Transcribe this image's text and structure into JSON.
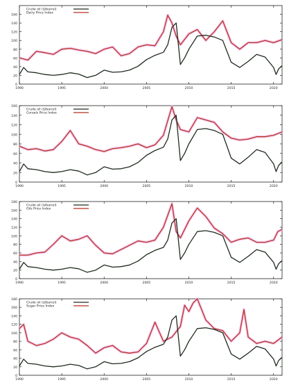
{
  "chart_data": [
    {
      "type": "line",
      "title": "",
      "xlabel": "",
      "ylabel": "",
      "xlim": [
        1990,
        2021
      ],
      "ylim": [
        0,
        180
      ],
      "x_ticks": [
        "1990",
        "1995",
        "2000",
        "2005",
        "2010",
        "2015",
        "2020"
      ],
      "y_ticks": [
        "0",
        "20",
        "40",
        "60",
        "80",
        "100",
        "120",
        "140",
        "160"
      ],
      "legend_position": "top-left",
      "series": [
        {
          "name": "Crude oil ($/barrel)",
          "color": "#1e2a1e",
          "x": [
            1990,
            1990.5,
            1991,
            1992,
            1993,
            1994,
            1995,
            1996,
            1997,
            1998,
            1999,
            2000,
            2001,
            2002,
            2003,
            2004,
            2005,
            2006,
            2007,
            2007.5,
            2008,
            2008.5,
            2009,
            2009.5,
            2010,
            2011,
            2012,
            2013,
            2014,
            2014.5,
            2015,
            2016,
            2017,
            2018,
            2019,
            2020,
            2020.3,
            2020.6,
            2021
          ],
          "values": [
            22,
            38,
            28,
            26,
            22,
            20,
            22,
            26,
            23,
            15,
            20,
            32,
            27,
            28,
            32,
            41,
            56,
            66,
            73,
            90,
            130,
            140,
            45,
            60,
            80,
            110,
            112,
            108,
            100,
            75,
            50,
            38,
            52,
            68,
            62,
            38,
            22,
            35,
            42
          ]
        },
        {
          "name": "Dairy Price Index",
          "color": "#b5321e",
          "x": [
            1990,
            1991,
            1992,
            1993,
            1994,
            1995,
            1996,
            1997,
            1998,
            1999,
            2000,
            2001,
            2002,
            2003,
            2004,
            2005,
            2006,
            2007,
            2007.5,
            2008,
            2008.5,
            2009,
            2010,
            2011,
            2012,
            2013,
            2014,
            2015,
            2016,
            2017,
            2018,
            2019,
            2020,
            2021
          ],
          "values": [
            60,
            55,
            75,
            72,
            68,
            80,
            82,
            78,
            75,
            70,
            80,
            85,
            65,
            70,
            85,
            90,
            88,
            120,
            158,
            140,
            110,
            90,
            115,
            125,
            100,
            120,
            145,
            95,
            80,
            95,
            95,
            100,
            95,
            102
          ]
        }
      ]
    },
    {
      "type": "line",
      "title": "",
      "xlabel": "",
      "ylabel": "",
      "xlim": [
        1990,
        2021
      ],
      "ylim": [
        0,
        160
      ],
      "x_ticks": [
        "1990",
        "1995",
        "2000",
        "2005",
        "2010",
        "2015",
        "2020"
      ],
      "y_ticks": [
        "0",
        "20",
        "40",
        "60",
        "80",
        "100",
        "120",
        "140",
        "160"
      ],
      "legend_position": "top-left",
      "series": [
        {
          "name": "Crude oil ($/barrel)",
          "color": "#1e2a1e",
          "x": [
            1990,
            1990.5,
            1991,
            1992,
            1993,
            1994,
            1995,
            1996,
            1997,
            1998,
            1999,
            2000,
            2001,
            2002,
            2003,
            2004,
            2005,
            2006,
            2007,
            2007.5,
            2008,
            2008.5,
            2009,
            2009.5,
            2010,
            2011,
            2012,
            2013,
            2014,
            2014.5,
            2015,
            2016,
            2017,
            2018,
            2019,
            2020,
            2020.3,
            2020.6,
            2021
          ],
          "values": [
            22,
            38,
            28,
            26,
            22,
            20,
            22,
            26,
            23,
            15,
            20,
            32,
            27,
            28,
            32,
            41,
            56,
            66,
            73,
            90,
            130,
            140,
            45,
            60,
            80,
            110,
            112,
            108,
            100,
            75,
            50,
            38,
            52,
            68,
            62,
            38,
            22,
            35,
            42
          ]
        },
        {
          "name": "Cereals Price Index",
          "color": "#b5321e",
          "x": [
            1990,
            1991,
            1992,
            1993,
            1994,
            1995,
            1996,
            1997,
            1998,
            1999,
            2000,
            2001,
            2002,
            2003,
            2004,
            2005,
            2006,
            2007,
            2008,
            2008.5,
            2009,
            2010,
            2011,
            2012,
            2013,
            2014,
            2015,
            2016,
            2017,
            2018,
            2019,
            2020,
            2021
          ],
          "values": [
            75,
            68,
            70,
            65,
            68,
            85,
            108,
            80,
            75,
            68,
            64,
            70,
            72,
            75,
            80,
            72,
            78,
            98,
            158,
            130,
            110,
            105,
            135,
            130,
            125,
            105,
            92,
            88,
            90,
            95,
            95,
            98,
            105
          ]
        }
      ]
    },
    {
      "type": "line",
      "title": "",
      "xlabel": "",
      "ylabel": "",
      "xlim": [
        1990,
        2021
      ],
      "ylim": [
        0,
        180
      ],
      "x_ticks": [
        "1990",
        "1995",
        "2000",
        "2005",
        "2010",
        "2015",
        "2020"
      ],
      "y_ticks": [
        "0",
        "20",
        "40",
        "60",
        "80",
        "100",
        "120",
        "140",
        "160",
        "180"
      ],
      "legend_position": "top-left",
      "series": [
        {
          "name": "Crude oil ($/barrel)",
          "color": "#1e2a1e",
          "x": [
            1990,
            1990.5,
            1991,
            1992,
            1993,
            1994,
            1995,
            1996,
            1997,
            1998,
            1999,
            2000,
            2001,
            2002,
            2003,
            2004,
            2005,
            2006,
            2007,
            2007.5,
            2008,
            2008.5,
            2009,
            2009.5,
            2010,
            2011,
            2012,
            2013,
            2014,
            2014.5,
            2015,
            2016,
            2017,
            2018,
            2019,
            2020,
            2020.3,
            2020.6,
            2021
          ],
          "values": [
            22,
            38,
            28,
            26,
            22,
            20,
            22,
            26,
            23,
            15,
            20,
            32,
            27,
            28,
            32,
            41,
            56,
            66,
            73,
            90,
            130,
            140,
            45,
            60,
            80,
            110,
            112,
            108,
            100,
            75,
            50,
            38,
            52,
            68,
            62,
            38,
            22,
            35,
            42
          ]
        },
        {
          "name": "Oils Price Index",
          "color": "#b5321e",
          "x": [
            1990,
            1991,
            1992,
            1993,
            1994,
            1995,
            1996,
            1997,
            1998,
            1999,
            2000,
            2001,
            2002,
            2003,
            2004,
            2005,
            2006,
            2007,
            2008,
            2008.5,
            2009,
            2010,
            2011,
            2012,
            2013,
            2014,
            2015,
            2016,
            2017,
            2018,
            2019,
            2020,
            2020.5,
            2021
          ],
          "values": [
            55,
            55,
            60,
            62,
            80,
            100,
            88,
            92,
            100,
            78,
            60,
            58,
            68,
            78,
            88,
            85,
            90,
            120,
            175,
            110,
            95,
            135,
            165,
            145,
            118,
            105,
            85,
            92,
            95,
            85,
            85,
            90,
            110,
            115
          ]
        }
      ]
    },
    {
      "type": "line",
      "title": "",
      "xlabel": "",
      "ylabel": "",
      "xlim": [
        1990,
        2021
      ],
      "ylim": [
        0,
        180
      ],
      "x_ticks": [
        "1990",
        "1995",
        "2000",
        "2005",
        "2010",
        "2015",
        "2020"
      ],
      "y_ticks": [
        "0",
        "20",
        "40",
        "60",
        "80",
        "100",
        "120",
        "140",
        "160",
        "180"
      ],
      "legend_position": "top-left",
      "series": [
        {
          "name": "Crude oil ($/barrel)",
          "color": "#1e2a1e",
          "x": [
            1990,
            1990.5,
            1991,
            1992,
            1993,
            1994,
            1995,
            1996,
            1997,
            1998,
            1999,
            2000,
            2001,
            2002,
            2003,
            2004,
            2005,
            2006,
            2007,
            2007.5,
            2008,
            2008.5,
            2009,
            2009.5,
            2010,
            2011,
            2012,
            2013,
            2014,
            2014.5,
            2015,
            2016,
            2017,
            2018,
            2019,
            2020,
            2020.3,
            2020.6,
            2021
          ],
          "values": [
            22,
            38,
            28,
            26,
            22,
            20,
            22,
            26,
            23,
            15,
            20,
            32,
            27,
            28,
            32,
            41,
            56,
            66,
            73,
            90,
            130,
            140,
            45,
            60,
            80,
            110,
            112,
            108,
            100,
            75,
            50,
            38,
            52,
            68,
            62,
            38,
            22,
            35,
            42
          ]
        },
        {
          "name": "Sugar Price Index",
          "color": "#b5321e",
          "x": [
            1990,
            1990.5,
            1991,
            1992,
            1993,
            1994,
            1995,
            1996,
            1997,
            1998,
            1999,
            2000,
            2001,
            2002,
            2003,
            2004,
            2005,
            2006,
            2007,
            2008,
            2009,
            2009.5,
            2010,
            2010.5,
            2011,
            2012,
            2013,
            2014,
            2015,
            2016,
            2016.5,
            2017,
            2018,
            2019,
            2020,
            2021
          ],
          "values": [
            110,
            120,
            80,
            70,
            75,
            85,
            100,
            90,
            85,
            70,
            52,
            65,
            70,
            55,
            52,
            55,
            75,
            125,
            80,
            90,
            115,
            165,
            150,
            170,
            180,
            130,
            110,
            105,
            80,
            100,
            155,
            90,
            75,
            80,
            75,
            90
          ]
        }
      ]
    }
  ]
}
